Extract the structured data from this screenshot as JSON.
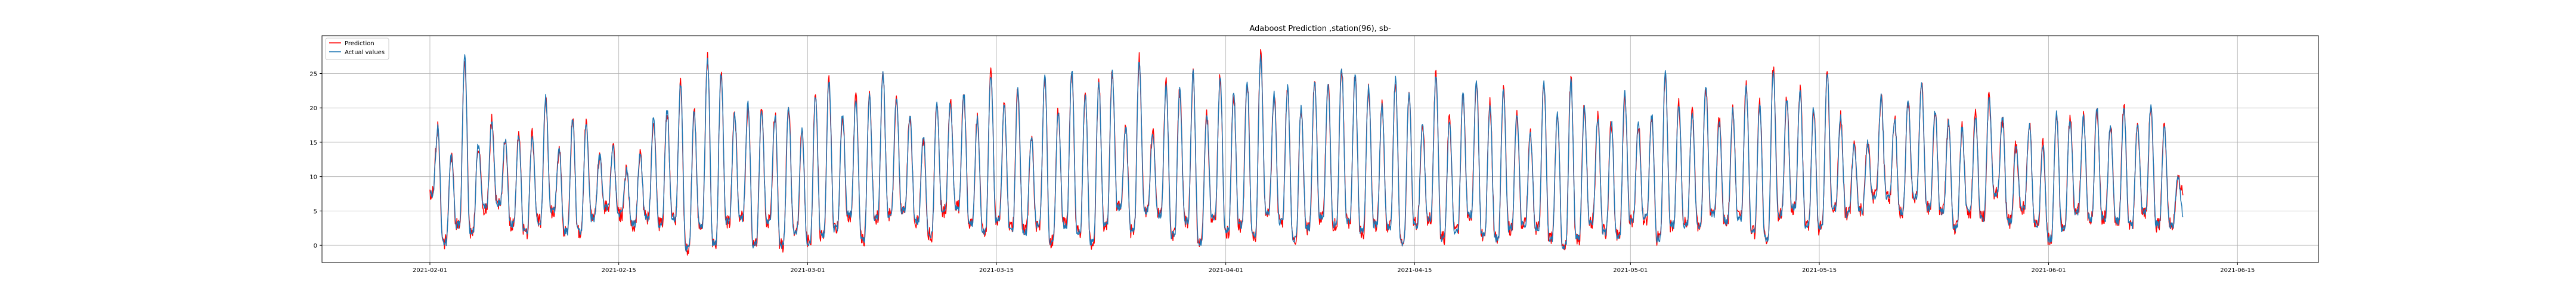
{
  "chart_data": {
    "type": "line",
    "title": "Adaboost Prediction ,station(96), sb-",
    "xlabel": "",
    "ylabel": "",
    "x_axis_kind": "date",
    "xlim": [
      "2021-01-24",
      "2021-06-21"
    ],
    "ylim": [
      -2.5,
      30.5
    ],
    "y_ticks": [
      0,
      5,
      10,
      15,
      20,
      25
    ],
    "x_ticks": [
      "2021-02-01",
      "2021-02-15",
      "2021-03-01",
      "2021-03-15",
      "2021-04-01",
      "2021-04-15",
      "2021-05-01",
      "2021-05-15",
      "2021-06-01",
      "2021-06-15"
    ],
    "grid": true,
    "legend": {
      "position": "top-left",
      "entries": [
        "Prediction",
        "Actual values"
      ]
    },
    "sampling": "hourly, 2021-02-01 00:00 to 2021-06-09 23:00 (daily peak/trough values listed per day)",
    "series": [
      {
        "name": "Actual values",
        "color": "#1f77b4",
        "start_date": "2021-02-01",
        "daily_min": [
          7.5,
          0.5,
          3,
          2,
          5.5,
          6,
          3,
          2,
          3.5,
          5,
          2,
          2,
          4,
          5.5,
          4.5,
          3,
          4,
          3,
          4,
          -0.5,
          3,
          0.5,
          3.5,
          4,
          0,
          3.5,
          0,
          2,
          0.5,
          1.5,
          2.5,
          4.5,
          1,
          4,
          4.5,
          5,
          3.5,
          1.5,
          5,
          5.5,
          3,
          2,
          3.5,
          2.5,
          2,
          3,
          0.5,
          3,
          2,
          0.5,
          3,
          5.5,
          2,
          5,
          4.5,
          1.5,
          3.5,
          0.5,
          4,
          2,
          3,
          1.5,
          5,
          3.5,
          1,
          2.5,
          4,
          3,
          3.5,
          2,
          3,
          2.5,
          0.5,
          3,
          4,
          1,
          2,
          4.5,
          1.5,
          1,
          2.5,
          3,
          2.5,
          1,
          0,
          1,
          3.5,
          2,
          1.5,
          3.5,
          4,
          1,
          3,
          3,
          3,
          4.5,
          3.5,
          4,
          2,
          1,
          4.5,
          5.5,
          3,
          2.5,
          5.5,
          4.5,
          5,
          7,
          7,
          5,
          7,
          5.5,
          5,
          2.5,
          5,
          4,
          7.5,
          3.5,
          5.5,
          3,
          1,
          2.5,
          5,
          4,
          4,
          3.5,
          3,
          5,
          3,
          3
        ],
        "daily_max": [
          17,
          13,
          27.5,
          14.5,
          18,
          15.5,
          16,
          16,
          21.5,
          14,
          18.5,
          18,
          13,
          14,
          11,
          13,
          18.5,
          19.5,
          23.5,
          19.5,
          27.5,
          25,
          19,
          20.5,
          20,
          19,
          20,
          16.5,
          22,
          24,
          19,
          21.5,
          21.5,
          25,
          21.5,
          19,
          16,
          20.5,
          21,
          22,
          18.5,
          25,
          20.5,
          22.5,
          16,
          24.5,
          19.5,
          25.5,
          22,
          23.5,
          25,
          17,
          27,
          16.5,
          23.5,
          22.5,
          25,
          19,
          24.5,
          22,
          24,
          27.5,
          22,
          23,
          20,
          24,
          23.5,
          26,
          25,
          23,
          20.5,
          24,
          22,
          17.5,
          25,
          18.5,
          22,
          24,
          20.5,
          22.5,
          19,
          16,
          24,
          19,
          24,
          20,
          18.5,
          18,
          22,
          17.5,
          19,
          25,
          20.5,
          19.5,
          23,
          18,
          19.5,
          23,
          20.5,
          25.5,
          21,
          22.5,
          20,
          25,
          18.5,
          14.5,
          15,
          21.5,
          18.5,
          21,
          23.5,
          19.5,
          18,
          17,
          19,
          21.5,
          18.5,
          14.5,
          17.5,
          14.5,
          19.5,
          18.5,
          18.5,
          20,
          17.5,
          20,
          17.5,
          20.5,
          17,
          10
        ],
        "end_value": 4.5
      },
      {
        "name": "Prediction",
        "color": "#ff0000",
        "start_date": "2021-02-01",
        "daily_min": [
          7.5,
          0.5,
          3,
          2,
          5.5,
          6,
          3,
          2,
          3.5,
          5,
          2,
          2,
          4,
          5.5,
          4.5,
          3,
          4,
          3,
          4,
          -0.5,
          3,
          0.5,
          3.5,
          4,
          0,
          3.5,
          0,
          2,
          0.5,
          1.5,
          2.5,
          4.5,
          1,
          4,
          4.5,
          5,
          3.5,
          1.5,
          5,
          5.5,
          3,
          2,
          3.5,
          2.5,
          2,
          3,
          0.5,
          3,
          2,
          0.5,
          3,
          5.5,
          2,
          5,
          4.5,
          1.5,
          3.5,
          0.5,
          4,
          2,
          3,
          1.5,
          5,
          3.5,
          1,
          2.5,
          4,
          3,
          3.5,
          2,
          3,
          2.5,
          0.5,
          3,
          4,
          1,
          2,
          4.5,
          1.5,
          1,
          2.5,
          3,
          2.5,
          1,
          0,
          1,
          3.5,
          2,
          1.5,
          3.5,
          4,
          1,
          3,
          3,
          3,
          4.5,
          3.5,
          4,
          2,
          1,
          4.5,
          5.5,
          3,
          2.5,
          5.5,
          4.5,
          5,
          7,
          7,
          5,
          7,
          5.5,
          5,
          2.5,
          5,
          4,
          7.5,
          3.5,
          5.5,
          3,
          1,
          2.5,
          5,
          4,
          4,
          3.5,
          3,
          5,
          3,
          3
        ],
        "daily_max": [
          17,
          13,
          27.5,
          14.5,
          18,
          15.5,
          16,
          16,
          21.5,
          14,
          18.5,
          18,
          13,
          14,
          11,
          13,
          18.5,
          19.5,
          23.5,
          19.5,
          27.5,
          25,
          19,
          20.5,
          20,
          19,
          20,
          16.5,
          22,
          24,
          19,
          21.5,
          21.5,
          25,
          21.5,
          19,
          16,
          20.5,
          21,
          22,
          18.5,
          25,
          20.5,
          22.5,
          16,
          24.5,
          19.5,
          25.5,
          22,
          23.5,
          25,
          17,
          27,
          16.5,
          23.5,
          22.5,
          25,
          19,
          24.5,
          22,
          24,
          27.5,
          22,
          23,
          20,
          24,
          23.5,
          26,
          25,
          23,
          20.5,
          24,
          22,
          17.5,
          25,
          18.5,
          22,
          24,
          20.5,
          22.5,
          19,
          16,
          24,
          19,
          24,
          20,
          18.5,
          18,
          22,
          17.5,
          19,
          25,
          20.5,
          19.5,
          23,
          18,
          19.5,
          23,
          20.5,
          25.5,
          21,
          22.5,
          20,
          25,
          18.5,
          14.5,
          15,
          21.5,
          18.5,
          21,
          23.5,
          19.5,
          18,
          17,
          19,
          21.5,
          18.5,
          14.5,
          17.5,
          14.5,
          19.5,
          18.5,
          18.5,
          20,
          17.5,
          20,
          17.5,
          20.5,
          17,
          10
        ],
        "end_value": 8
      }
    ]
  }
}
